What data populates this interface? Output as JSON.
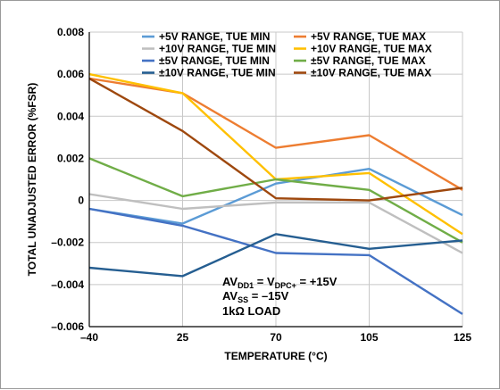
{
  "chart_data": {
    "type": "line",
    "xlabel": "TEMPERATURE (°C)",
    "ylabel": "TOTAL UNADJUSTED ERROR (%FSR)",
    "x": [
      -40,
      25,
      70,
      105,
      125
    ],
    "xticks": [
      "–40",
      "25",
      "70",
      "105",
      "125"
    ],
    "ylim": [
      -0.006,
      0.008
    ],
    "yticks": [
      "0.008",
      "0.006",
      "0.004",
      "0.002",
      "0",
      "–0.002",
      "–0.004",
      "–0.006"
    ],
    "grid": true,
    "legend_position": "top-right",
    "series": [
      {
        "name": "+5V RANGE, TUE MIN",
        "color": "#5b9bd5",
        "values": [
          -0.0004,
          -0.0011,
          0.0008,
          0.0015,
          -0.0007
        ]
      },
      {
        "name": "+5V RANGE, TUE MAX",
        "color": "#ed7d31",
        "values": [
          0.0058,
          0.0051,
          0.0025,
          0.0031,
          0.0005
        ]
      },
      {
        "name": "+10V RANGE, TUE MIN",
        "color": "#bfbfbf",
        "values": [
          0.0003,
          -0.0004,
          -0.0001,
          -0.0001,
          -0.0025
        ]
      },
      {
        "name": "+10V RANGE, TUE MAX",
        "color": "#ffc000",
        "values": [
          0.006,
          0.0051,
          0.001,
          0.0013,
          -0.0016
        ]
      },
      {
        "name": "±5V RANGE, TUE MIN",
        "color": "#4472c4",
        "values": [
          -0.0004,
          -0.0012,
          -0.0025,
          -0.0026,
          -0.0054
        ]
      },
      {
        "name": "±5V RANGE, TUE MAX",
        "color": "#70ad47",
        "values": [
          0.002,
          0.0002,
          0.001,
          0.0005,
          -0.002
        ]
      },
      {
        "name": "±10V RANGE, TUE MIN",
        "color": "#255e91",
        "values": [
          -0.0032,
          -0.0036,
          -0.0016,
          -0.0023,
          -0.0019
        ]
      },
      {
        "name": "±10V RANGE, TUE MAX",
        "color": "#9e480e",
        "values": [
          0.0058,
          0.0033,
          0.0001,
          0.0,
          0.0006
        ]
      }
    ],
    "annotation": {
      "line1_main": "AV",
      "line1_sub1": "DD1",
      "line1_mid": " = V",
      "line1_sub2": "DPC+",
      "line1_end": " = +15V",
      "line2_main": "AV",
      "line2_sub": "SS",
      "line2_end": " = –15V",
      "line3": "1kΩ LOAD"
    }
  }
}
